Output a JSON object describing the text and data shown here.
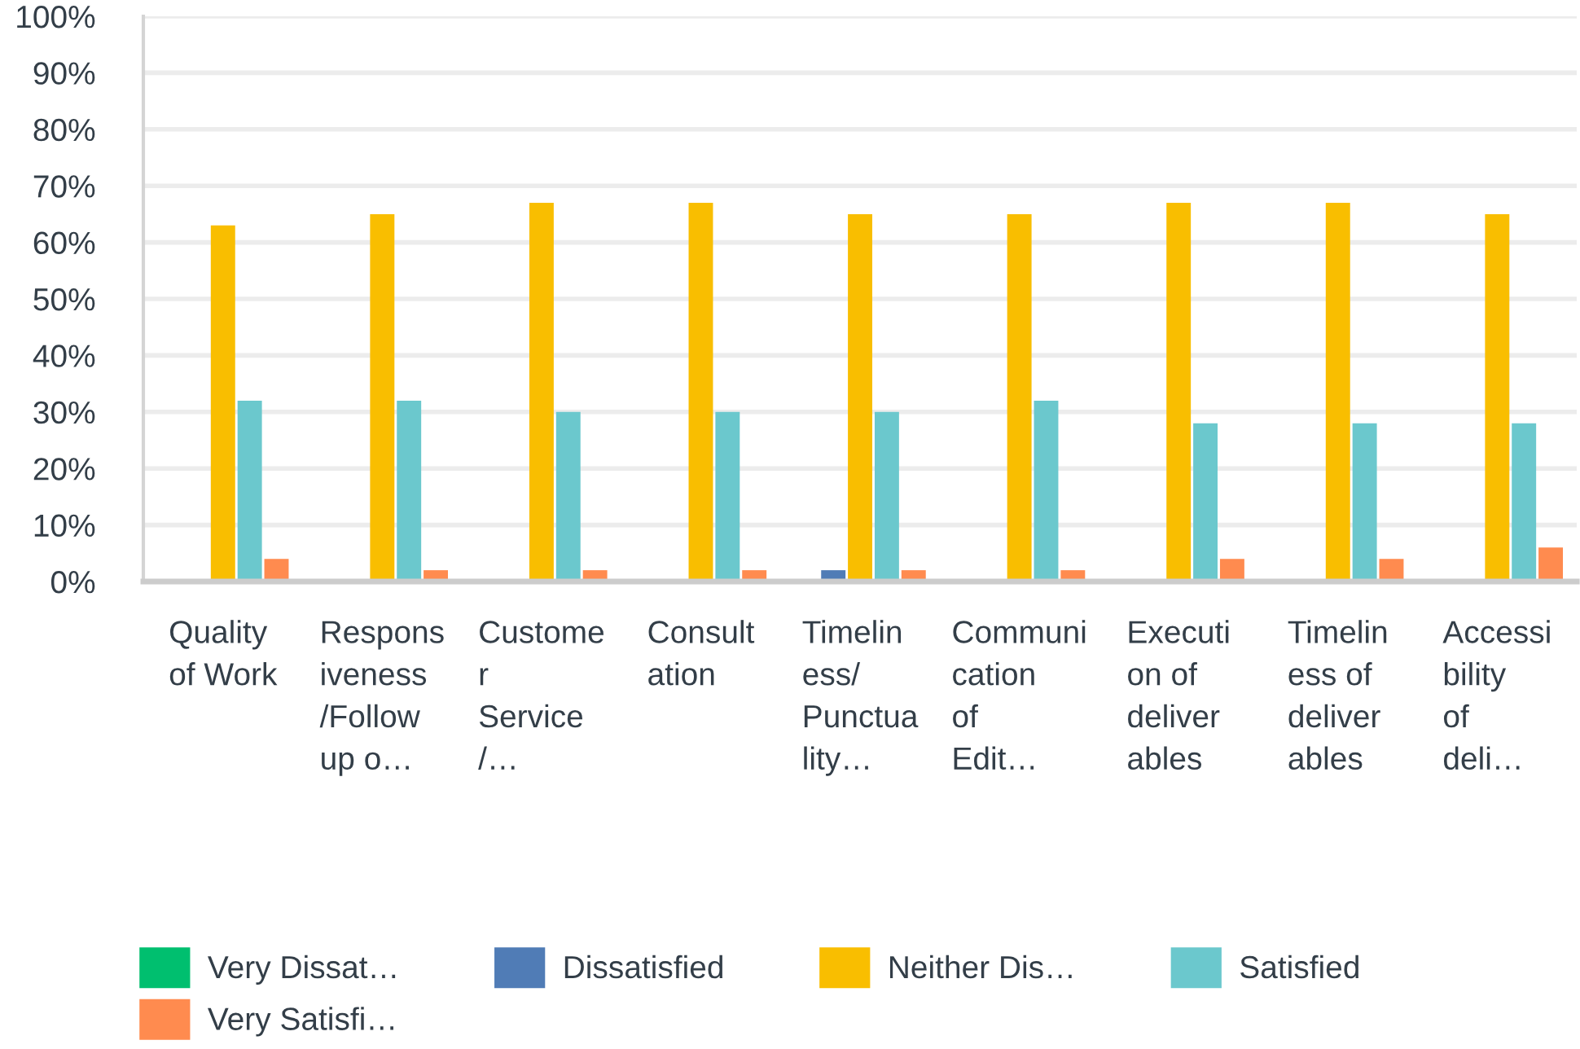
{
  "chart_data": {
    "type": "bar",
    "categories": [
      "Quality\nof Work",
      "Respons\niveness\n/Follow\nup o…",
      "Custome\nr\nService\n/…",
      "Consult\nation",
      "Timelin\ness/\nPunctua\nlity…",
      "Communi\ncation\nof\nEdit…",
      "Executi\non of\ndeliver\nables",
      "Timelin\ness of\ndeliver\nables",
      "Accessi\nbility\nof\ndeli…"
    ],
    "series": [
      {
        "name": "Very Dissat…",
        "color": "#00bf6f",
        "values": [
          0,
          0,
          0,
          0,
          0,
          0,
          0,
          0,
          0
        ]
      },
      {
        "name": "Dissatisfied",
        "color": "#507cb6",
        "values": [
          0,
          0,
          0,
          0,
          2,
          0,
          0,
          0,
          0
        ]
      },
      {
        "name": "Neither Dis…",
        "color": "#f9be00",
        "values": [
          63,
          65,
          67,
          67,
          65,
          65,
          67,
          67,
          65
        ]
      },
      {
        "name": "Satisfied",
        "color": "#6bc8cd",
        "values": [
          32,
          32,
          30,
          30,
          30,
          32,
          28,
          28,
          28
        ]
      },
      {
        "name": "Very Satisfi…",
        "color": "#ff8b4f",
        "values": [
          4,
          2,
          2,
          2,
          2,
          2,
          4,
          4,
          6
        ]
      }
    ],
    "ylim": [
      0,
      100
    ],
    "yticks": [
      {
        "value": 0,
        "label": "0%"
      },
      {
        "value": 10,
        "label": "10%"
      },
      {
        "value": 20,
        "label": "20%"
      },
      {
        "value": 30,
        "label": "30%"
      },
      {
        "value": 40,
        "label": "40%"
      },
      {
        "value": 50,
        "label": "50%"
      },
      {
        "value": 60,
        "label": "60%"
      },
      {
        "value": 70,
        "label": "70%"
      },
      {
        "value": 80,
        "label": "80%"
      },
      {
        "value": 90,
        "label": "90%"
      },
      {
        "value": 100,
        "label": "100%"
      }
    ],
    "grid": "y",
    "legend": "bottom"
  }
}
